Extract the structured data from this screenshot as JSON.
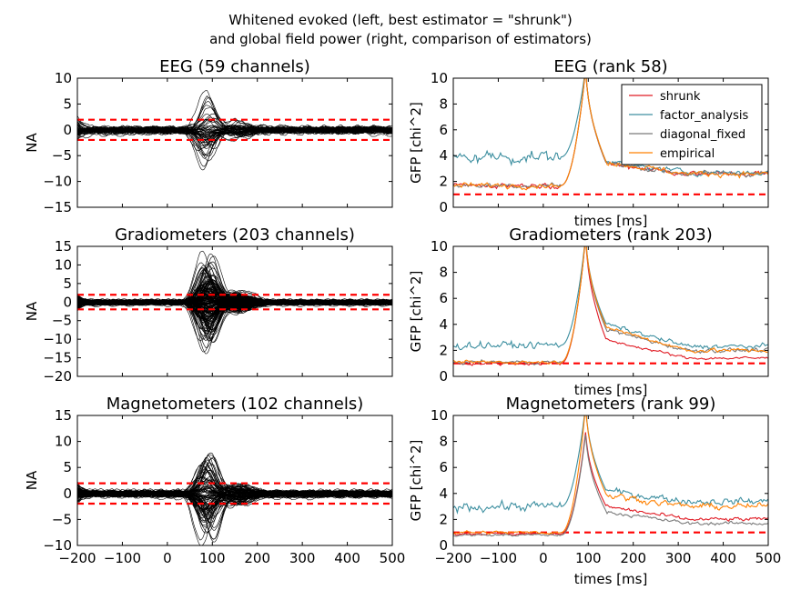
{
  "suptitle": [
    "Whitened evoked (left, best estimator = \"shrunk\")",
    "and global field power (right, comparison of estimators)"
  ],
  "chart_data": [
    {
      "type": "line",
      "panel": "left",
      "row": 0,
      "title": "EEG (59 channels)",
      "ylabel": "NA",
      "xlabel": "",
      "xlim": [
        -200,
        500
      ],
      "ylim": [
        -15,
        10
      ],
      "yticks": [
        -15,
        -10,
        -5,
        0,
        5,
        10
      ],
      "xticks": [
        -200,
        -100,
        0,
        100,
        200,
        300,
        400,
        500
      ],
      "show_xticklabels": false,
      "n_channels": 59,
      "noise_level": 1.2,
      "peak_amplitude": 9,
      "peak_time": 95,
      "reference_lines": [
        -1.96,
        1.96
      ]
    },
    {
      "type": "line",
      "panel": "right",
      "row": 0,
      "title": "EEG (rank 58)",
      "ylabel": "GFP [chi^2]",
      "xlabel": "times [ms]",
      "xlim": [
        -200,
        500
      ],
      "ylim": [
        0,
        10
      ],
      "yticks": [
        0,
        2,
        4,
        6,
        8,
        10
      ],
      "xticks": [
        -200,
        -100,
        0,
        100,
        200,
        300,
        400,
        500
      ],
      "show_xticklabels": false,
      "reference_line": 1,
      "legend": {
        "location": "upper right",
        "entries": [
          "shrunk",
          "factor_analysis",
          "diagonal_fixed",
          "empirical"
        ]
      },
      "series": [
        {
          "name": "shrunk",
          "color": "#e01b24",
          "baseline": 1.7,
          "peak": 11,
          "post": 2.8,
          "late": 2.6
        },
        {
          "name": "factor_analysis",
          "color": "#3d8fa0",
          "baseline": 3.9,
          "peak": 11,
          "post": 2.9,
          "late": 2.7
        },
        {
          "name": "diagonal_fixed",
          "color": "#7a7a7a",
          "baseline": 1.7,
          "peak": 11,
          "post": 2.8,
          "late": 2.6
        },
        {
          "name": "empirical",
          "color": "#ff8000",
          "baseline": 1.7,
          "peak": 11,
          "post": 2.9,
          "late": 2.6
        }
      ]
    },
    {
      "type": "line",
      "panel": "left",
      "row": 1,
      "title": "Gradiometers (203 channels)",
      "ylabel": "NA",
      "xlabel": "",
      "xlim": [
        -200,
        500
      ],
      "ylim": [
        -20,
        15
      ],
      "yticks": [
        -20,
        -15,
        -10,
        -5,
        0,
        5,
        10,
        15
      ],
      "xticks": [
        -200,
        -100,
        0,
        100,
        200,
        300,
        400,
        500
      ],
      "show_xticklabels": false,
      "n_channels": 203,
      "noise_level": 1.1,
      "peak_amplitude": 13,
      "peak_time": 95,
      "reference_lines": [
        -1.96,
        1.96
      ]
    },
    {
      "type": "line",
      "panel": "right",
      "row": 1,
      "title": "Gradiometers (rank 203)",
      "ylabel": "GFP [chi^2]",
      "xlabel": "times [ms]",
      "xlim": [
        -200,
        500
      ],
      "ylim": [
        0,
        10
      ],
      "yticks": [
        0,
        2,
        4,
        6,
        8,
        10
      ],
      "xticks": [
        -200,
        -100,
        0,
        100,
        200,
        300,
        400,
        500
      ],
      "show_xticklabels": false,
      "reference_line": 1,
      "series": [
        {
          "name": "shrunk",
          "color": "#e01b24",
          "baseline": 1.0,
          "peak": 11,
          "post": 2.2,
          "late": 1.4
        },
        {
          "name": "factor_analysis",
          "color": "#3d8fa0",
          "baseline": 2.4,
          "peak": 11,
          "post": 3.4,
          "late": 2.3
        },
        {
          "name": "diagonal_fixed",
          "color": "#7a7a7a",
          "baseline": 1.1,
          "peak": 11,
          "post": 3.0,
          "late": 2.0
        },
        {
          "name": "empirical",
          "color": "#ff8000",
          "baseline": 1.1,
          "peak": 11,
          "post": 3.2,
          "late": 2.0
        }
      ]
    },
    {
      "type": "line",
      "panel": "left",
      "row": 2,
      "title": "Magnetometers (102 channels)",
      "ylabel": "NA",
      "xlabel": "",
      "xlim": [
        -200,
        500
      ],
      "ylim": [
        -10,
        15
      ],
      "yticks": [
        -10,
        -5,
        0,
        5,
        10,
        15
      ],
      "xticks": [
        -200,
        -100,
        0,
        100,
        200,
        300,
        400,
        500
      ],
      "xticklabels": [
        "−200",
        "−100",
        "0",
        "100",
        "200",
        "300",
        "400",
        "500"
      ],
      "show_xticklabels": true,
      "n_channels": 102,
      "noise_level": 1.1,
      "peak_amplitude": 10,
      "peak_time": 95,
      "reference_lines": [
        -1.96,
        1.96
      ]
    },
    {
      "type": "line",
      "panel": "right",
      "row": 2,
      "title": "Magnetometers (rank 99)",
      "ylabel": "GFP [chi^2]",
      "xlabel": "times [ms]",
      "xlim": [
        -200,
        500
      ],
      "ylim": [
        0,
        10
      ],
      "yticks": [
        0,
        2,
        4,
        6,
        8,
        10
      ],
      "xticks": [
        -200,
        -100,
        0,
        100,
        200,
        300,
        400,
        500
      ],
      "xticklabels": [
        "−200",
        "−100",
        "0",
        "100",
        "200",
        "300",
        "400",
        "500"
      ],
      "show_xticklabels": true,
      "reference_line": 1,
      "series": [
        {
          "name": "shrunk",
          "color": "#e01b24",
          "baseline": 0.9,
          "peak": 9,
          "post": 2.4,
          "late": 2.0
        },
        {
          "name": "factor_analysis",
          "color": "#3d8fa0",
          "baseline": 3.0,
          "peak": 11,
          "post": 3.6,
          "late": 3.4
        },
        {
          "name": "diagonal_fixed",
          "color": "#7a7a7a",
          "baseline": 0.8,
          "peak": 8.8,
          "post": 2.0,
          "late": 1.7
        },
        {
          "name": "empirical",
          "color": "#ff8000",
          "baseline": 1.0,
          "peak": 11,
          "post": 3.3,
          "late": 3.0
        }
      ]
    }
  ]
}
